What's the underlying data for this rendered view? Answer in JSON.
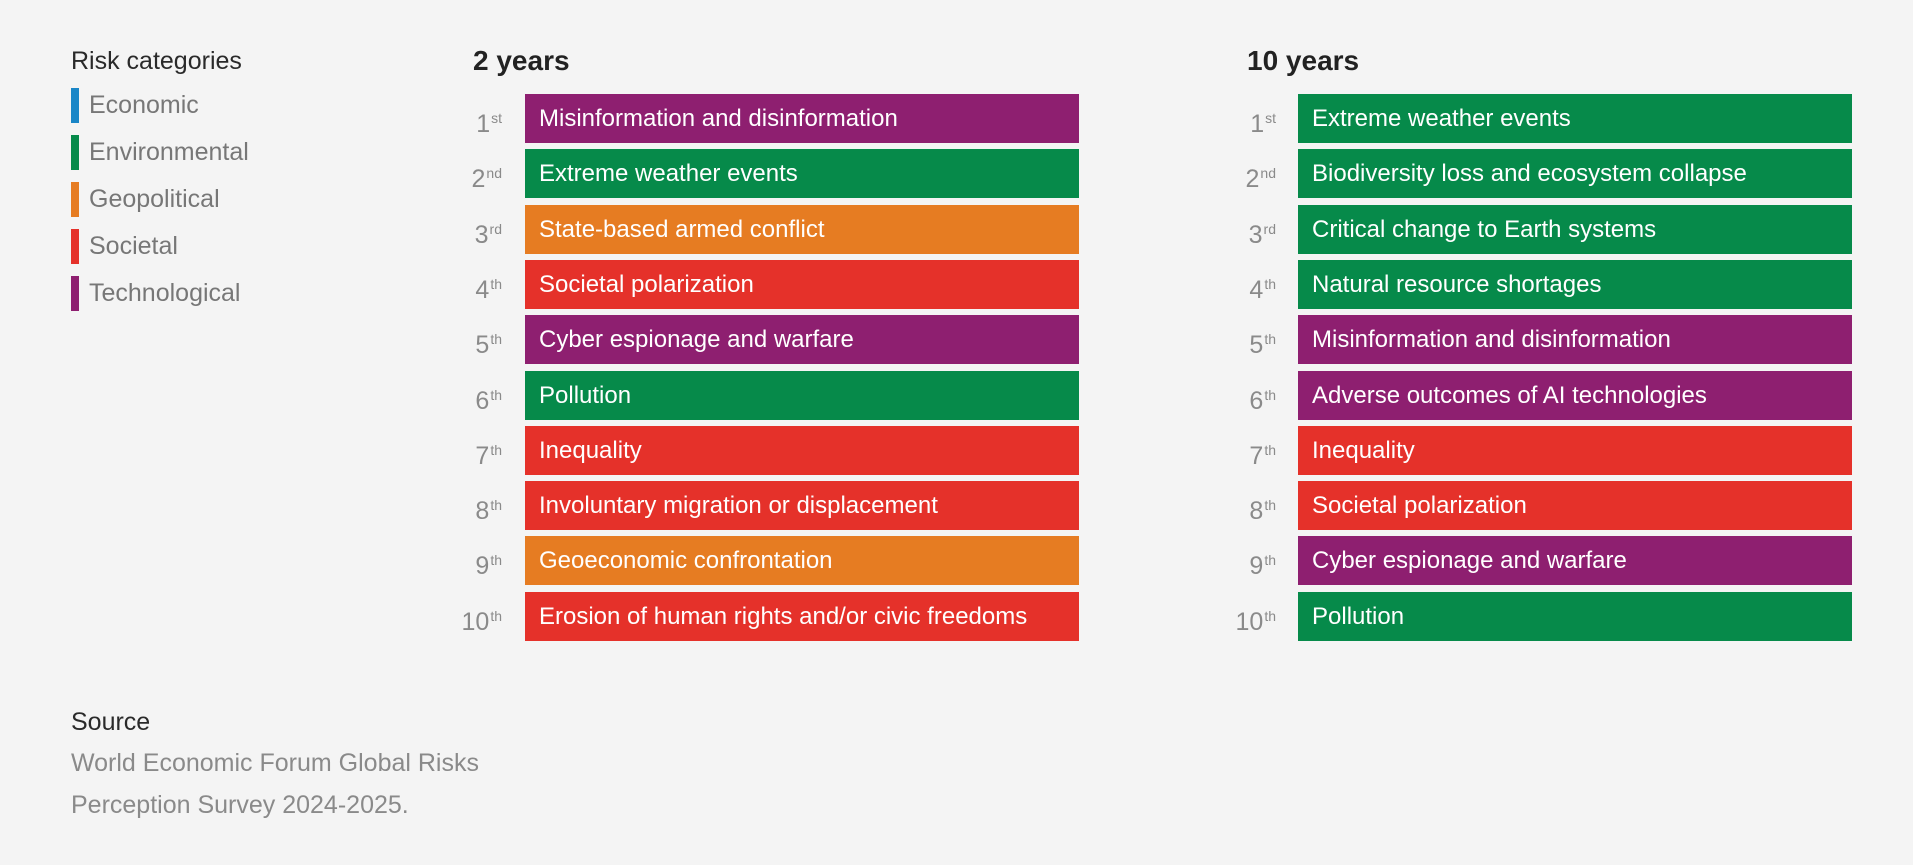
{
  "legend": {
    "title": "Risk categories",
    "items": [
      {
        "label": "Economic",
        "color": "#1a86c7"
      },
      {
        "label": "Environmental",
        "color": "#068a4a"
      },
      {
        "label": "Geopolitical",
        "color": "#e67c22"
      },
      {
        "label": "Societal",
        "color": "#e5312a"
      },
      {
        "label": "Technological",
        "color": "#8e1f70"
      }
    ]
  },
  "colors": {
    "Economic": "#1a86c7",
    "Environmental": "#068a4a",
    "Geopolitical": "#e67c22",
    "Societal": "#e5312a",
    "Technological": "#8e1f70"
  },
  "chart_data": [
    {
      "type": "table",
      "title": "2 years",
      "rows": [
        {
          "rank": "1",
          "suffix": "st",
          "label": "Misinformation and disinformation",
          "category": "Technological"
        },
        {
          "rank": "2",
          "suffix": "nd",
          "label": "Extreme weather events",
          "category": "Environmental"
        },
        {
          "rank": "3",
          "suffix": "rd",
          "label": "State-based armed conflict",
          "category": "Geopolitical"
        },
        {
          "rank": "4",
          "suffix": "th",
          "label": "Societal polarization",
          "category": "Societal"
        },
        {
          "rank": "5",
          "suffix": "th",
          "label": "Cyber espionage and warfare",
          "category": "Technological"
        },
        {
          "rank": "6",
          "suffix": "th",
          "label": "Pollution",
          "category": "Environmental"
        },
        {
          "rank": "7",
          "suffix": "th",
          "label": "Inequality",
          "category": "Societal"
        },
        {
          "rank": "8",
          "suffix": "th",
          "label": "Involuntary migration or displacement",
          "category": "Societal"
        },
        {
          "rank": "9",
          "suffix": "th",
          "label": "Geoeconomic confrontation",
          "category": "Geopolitical"
        },
        {
          "rank": "10",
          "suffix": "th",
          "label": "Erosion of human rights and/or civic freedoms",
          "category": "Societal"
        }
      ]
    },
    {
      "type": "table",
      "title": "10 years",
      "rows": [
        {
          "rank": "1",
          "suffix": "st",
          "label": "Extreme weather events",
          "category": "Environmental"
        },
        {
          "rank": "2",
          "suffix": "nd",
          "label": "Biodiversity loss and ecosystem collapse",
          "category": "Environmental"
        },
        {
          "rank": "3",
          "suffix": "rd",
          "label": "Critical change to Earth systems",
          "category": "Environmental"
        },
        {
          "rank": "4",
          "suffix": "th",
          "label": "Natural resource shortages",
          "category": "Environmental"
        },
        {
          "rank": "5",
          "suffix": "th",
          "label": "Misinformation and disinformation",
          "category": "Technological"
        },
        {
          "rank": "6",
          "suffix": "th",
          "label": "Adverse outcomes of AI technologies",
          "category": "Technological"
        },
        {
          "rank": "7",
          "suffix": "th",
          "label": "Inequality",
          "category": "Societal"
        },
        {
          "rank": "8",
          "suffix": "th",
          "label": "Societal polarization",
          "category": "Societal"
        },
        {
          "rank": "9",
          "suffix": "th",
          "label": "Cyber espionage and warfare",
          "category": "Technological"
        },
        {
          "rank": "10",
          "suffix": "th",
          "label": "Pollution",
          "category": "Environmental"
        }
      ]
    }
  ],
  "source": {
    "title": "Source",
    "text": "World Economic Forum Global Risks Perception Survey 2024-2025."
  }
}
